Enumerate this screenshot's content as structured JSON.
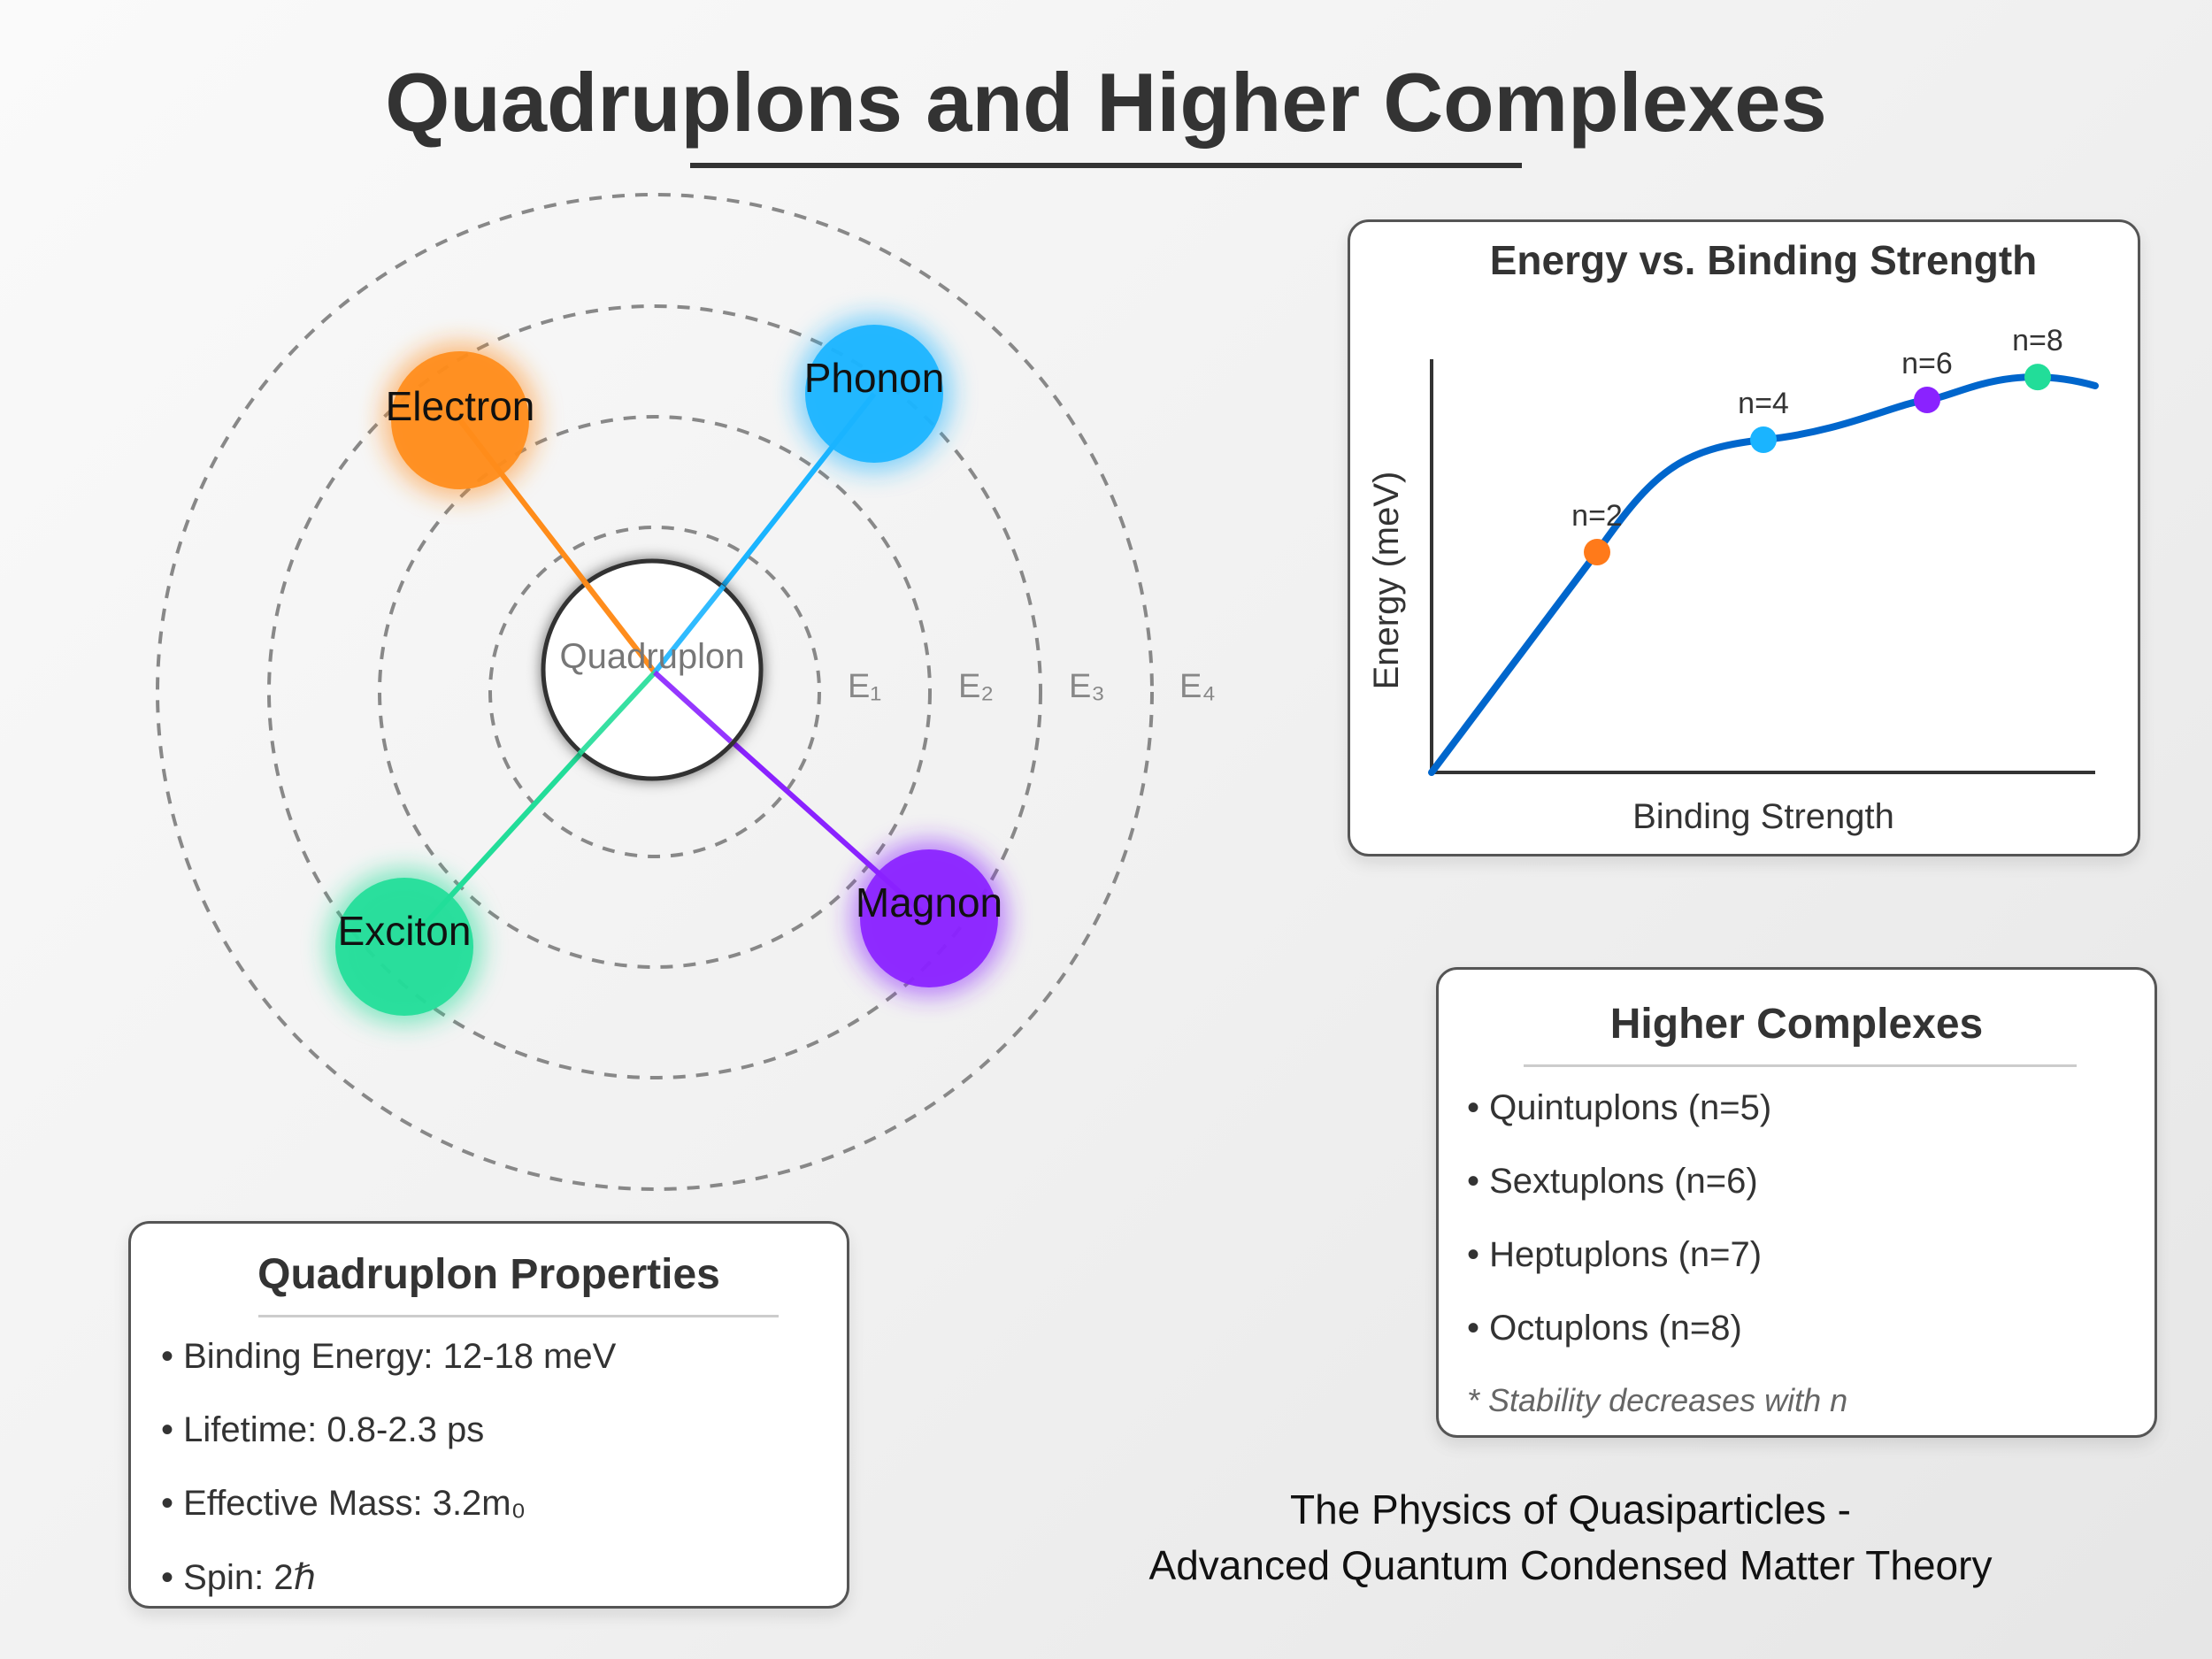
{
  "title": "Quadruplons and Higher Complexes",
  "diagram": {
    "center_label": "Quadruplon",
    "levels": [
      "E₁",
      "E₂",
      "E₃",
      "E₄"
    ],
    "particles": [
      {
        "label": "Electron",
        "color": "#ff8c1a"
      },
      {
        "label": "Phonon",
        "color": "#1ab4ff"
      },
      {
        "label": "Exciton",
        "color": "#22dd99"
      },
      {
        "label": "Magnon",
        "color": "#8a22ff"
      }
    ]
  },
  "chart_data": {
    "type": "line",
    "title": "Energy vs. Binding Strength",
    "xlabel": "Binding Strength",
    "ylabel": "Energy (meV)",
    "line_color": "#0066cc",
    "points": [
      {
        "label": "n=2",
        "color": "#ff7a1a"
      },
      {
        "label": "n=4",
        "color": "#1ab4ff"
      },
      {
        "label": "n=6",
        "color": "#8a22ff"
      },
      {
        "label": "n=8",
        "color": "#22dd99"
      }
    ]
  },
  "properties": {
    "title": "Quadruplon Properties",
    "items": [
      "• Binding Energy: 12-18 meV",
      "• Lifetime: 0.8-2.3 ps",
      "• Effective Mass: 3.2m₀",
      "• Spin: 2ℏ"
    ]
  },
  "higher": {
    "title": "Higher Complexes",
    "items": [
      "• Quintuplons (n=5)",
      "• Sextuplons (n=6)",
      "• Heptuplons (n=7)",
      "• Octuplons (n=8)"
    ],
    "note": "* Stability decreases with n"
  },
  "footer": {
    "line1": "The Physics of Quasiparticles -",
    "line2": "Advanced Quantum Condensed Matter Theory"
  }
}
